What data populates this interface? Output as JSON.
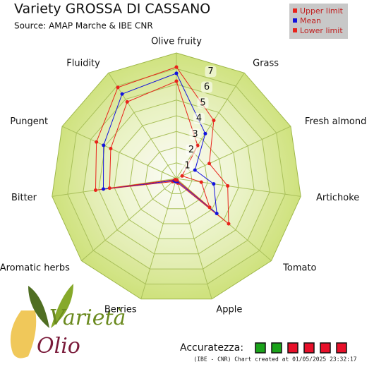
{
  "chart_data": {
    "type": "radar",
    "title": "Variety GROSSA DI CASSANO",
    "subtitle": "Source: AMAP Marche & IBE CNR",
    "categories": [
      "Olive fruity",
      "Grass",
      "Fresh almond",
      "Artichoke",
      "Tomato",
      "Apple",
      "Berries",
      "Aromatic herbs",
      "Bitter",
      "Pungent",
      "Fluidity"
    ],
    "series": [
      {
        "name": "Upper limit",
        "color": "#e8231b",
        "values": [
          7.1,
          4.4,
          2.3,
          3.3,
          4.4,
          0.3,
          0.2,
          0.3,
          5.2,
          5.6,
          6.9
        ]
      },
      {
        "name": "Mean",
        "color": "#1212dd",
        "values": [
          6.7,
          3.4,
          1.3,
          2.4,
          3.4,
          0.2,
          0.2,
          0.2,
          4.7,
          5.1,
          6.4
        ]
      },
      {
        "name": "Lower limit",
        "color": "#e8231b",
        "values": [
          6.2,
          2.5,
          0.4,
          1.6,
          2.8,
          0.1,
          0.1,
          0.1,
          4.3,
          4.6,
          5.8
        ]
      }
    ],
    "ylim": [
      0,
      8
    ],
    "yticks": [
      1,
      2,
      3,
      4,
      5,
      6,
      7
    ],
    "accuracy_label": "Accuratezza:",
    "accuracy_colors": [
      "#1aa31a",
      "#1aa31a",
      "#e8102a",
      "#e8102a",
      "#e8102a",
      "#e8102a"
    ],
    "footer": "(IBE - CNR) Chart created at 01/05/2025 23:32:17",
    "logo": [
      "Varietà",
      "Olio"
    ]
  }
}
